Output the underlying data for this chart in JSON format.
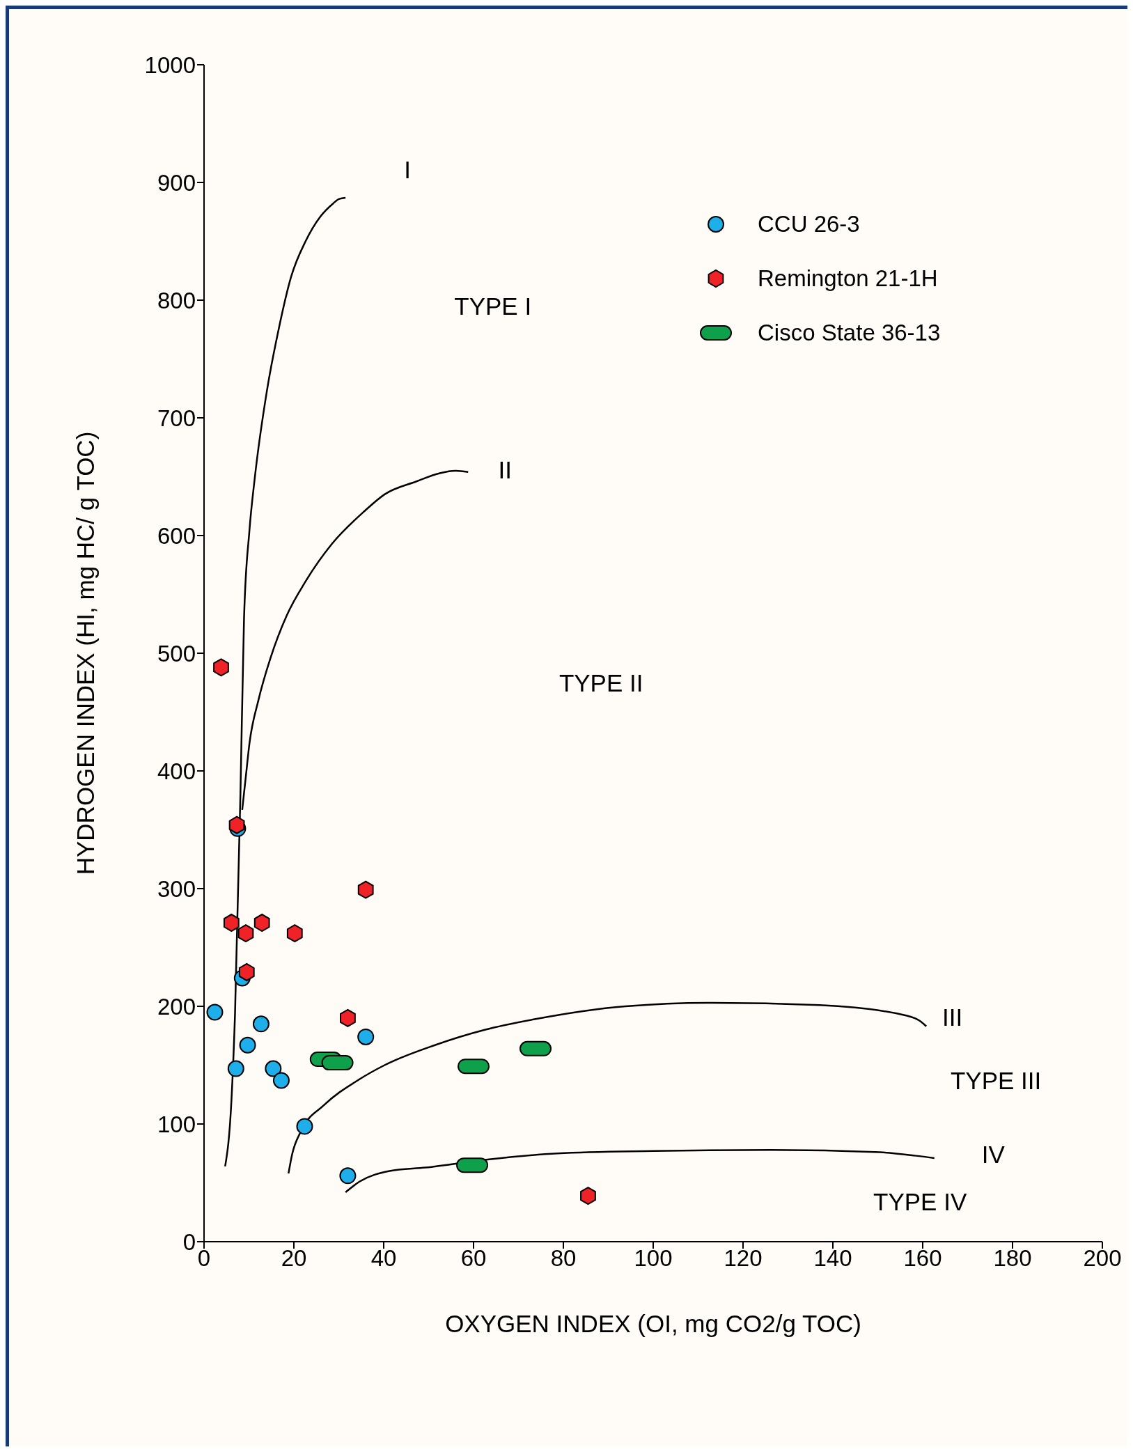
{
  "chart_data": {
    "type": "scatter",
    "xlabel": "OXYGEN INDEX (OI, mg CO2/g TOC)",
    "ylabel": "HYDROGEN INDEX (HI, mg HC/ g TOC)",
    "xlim": [
      0,
      200
    ],
    "xticks": [
      0,
      20,
      40,
      60,
      80,
      100,
      120,
      140,
      160,
      180,
      200
    ],
    "ylim": [
      0,
      1000
    ],
    "yticks": [
      0,
      100,
      200,
      300,
      400,
      500,
      600,
      700,
      800,
      900,
      1000
    ],
    "grid": false,
    "legend": "top right",
    "series": [
      {
        "name": "CCU 26-3",
        "color": "#1eaeea",
        "x": [
          2.4,
          7.5,
          8.5,
          12.7,
          9.7,
          7.1,
          15.4,
          17.2,
          36,
          22.4,
          32
        ],
        "values": [
          195,
          351,
          224,
          185,
          167,
          147,
          147,
          137,
          174,
          98,
          56
        ]
      },
      {
        "name": "Remington 21-1H",
        "color": "#ee2227",
        "x": [
          3.8,
          7.3,
          6.1,
          9.3,
          12.9,
          20.2,
          36,
          9.5,
          32,
          85.5
        ],
        "values": [
          488,
          354,
          271,
          262,
          271,
          262,
          299,
          229,
          190,
          39
        ]
      },
      {
        "name": "Cisco State 36-13",
        "color": "#0fa04b",
        "x": [
          27.1,
          29.7,
          60,
          73.8,
          59.7
        ],
        "values": [
          155,
          152,
          149,
          164,
          65
        ]
      },
      {
        "type": "line",
        "color": "#000000",
        "marker": "none",
        "x": [
          4.7,
          6.1,
          6.9,
          8.1,
          8.9,
          10.1,
          11.3,
          14,
          16.6,
          19.4,
          22.6,
          25.9,
          28.7,
          30.1,
          31.5
        ],
        "values": [
          64,
          120,
          194,
          380,
          529,
          604,
          649,
          723,
          775,
          820,
          850,
          871,
          882,
          886,
          887
        ]
      },
      {
        "type": "line",
        "color": "#000000",
        "marker": "none",
        "x": [
          8.5,
          9.3,
          10.1,
          12.1,
          14.8,
          18.4,
          22.6,
          28.5,
          35.8,
          40.2,
          47.3,
          52.5,
          56,
          58.8
        ],
        "values": [
          367,
          395,
          423,
          460,
          496,
          532,
          561,
          593,
          621,
          635,
          646,
          653,
          655,
          654
        ]
      },
      {
        "type": "line",
        "color": "#000000",
        "marker": "none",
        "x": [
          18.8,
          19.6,
          21.6,
          26.7,
          34.6,
          40.2,
          51.4,
          62.5,
          73.6,
          93.8,
          113,
          137,
          156.5,
          159.6,
          160.8
        ],
        "values": [
          58,
          74,
          94,
          116,
          138,
          150,
          167,
          180,
          189,
          200,
          203,
          201,
          192,
          187,
          183
        ]
      },
      {
        "type": "line",
        "color": "#000000",
        "marker": "none",
        "x": [
          31.5,
          34.6,
          41.3,
          49.3,
          63.5,
          78.7,
          99.9,
          126.2,
          150.5,
          158.5,
          162.6
        ],
        "values": [
          42,
          51,
          60,
          63,
          70,
          75,
          77,
          78,
          76,
          73,
          71
        ]
      }
    ],
    "annotations": [
      "I",
      "II",
      "III",
      "IV",
      "TYPE I",
      "TYPE II",
      "TYPE III",
      "TYPE IV"
    ]
  }
}
